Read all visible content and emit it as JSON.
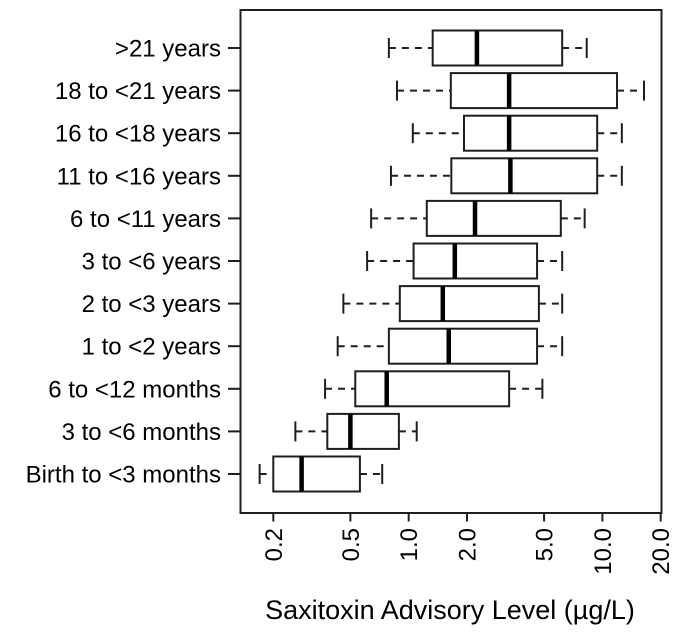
{
  "figure": {
    "background": "#ffffff",
    "line_color": "#1f1f1f",
    "median_color": "#000000",
    "text_color": "#000000"
  },
  "chart_data": {
    "type": "boxplot",
    "orientation": "horizontal",
    "title": "",
    "xlabel": "Saxitoxin Advisory Level (µg/L)",
    "ylabel": "",
    "x_scale": "log10",
    "xlim": [
      0.13,
      20
    ],
    "grid": false,
    "legend": "none",
    "x_tick_values": [
      0.2,
      0.5,
      1.0,
      2.0,
      5.0,
      10.0,
      20.0
    ],
    "x_tick_labels": [
      "0.2",
      "0.5",
      "1.0",
      "2.0",
      "5.0",
      "10.0",
      "20.0"
    ],
    "categories": [
      ">21 years",
      "18 to <21 years",
      "16 to <18 years",
      "11 to <16 years",
      "6 to <11 years",
      "3 to <6 years",
      "2 to <3 years",
      "1 to <2 years",
      "6 to <12 months",
      "3 to <6 months",
      "Birth to <3 months"
    ],
    "boxes": [
      {
        "category": ">21 years",
        "whisker_low": 0.79,
        "q1": 1.33,
        "median": 2.25,
        "q3": 6.2,
        "whisker_high": 8.3
      },
      {
        "category": "18 to <21 years",
        "whisker_low": 0.87,
        "q1": 1.65,
        "median": 3.3,
        "q3": 11.9,
        "whisker_high": 16.4
      },
      {
        "category": "16 to <18 years",
        "whisker_low": 1.05,
        "q1": 1.93,
        "median": 3.3,
        "q3": 9.4,
        "whisker_high": 12.6
      },
      {
        "category": "11 to <16 years",
        "whisker_low": 0.81,
        "q1": 1.66,
        "median": 3.35,
        "q3": 9.4,
        "whisker_high": 12.6
      },
      {
        "category": "6 to <11 years",
        "whisker_low": 0.64,
        "q1": 1.24,
        "median": 2.2,
        "q3": 6.1,
        "whisker_high": 8.1
      },
      {
        "category": "3 to <6 years",
        "whisker_low": 0.61,
        "q1": 1.06,
        "median": 1.73,
        "q3": 4.6,
        "whisker_high": 6.2
      },
      {
        "category": "2 to <3 years",
        "whisker_low": 0.46,
        "q1": 0.9,
        "median": 1.5,
        "q3": 4.7,
        "whisker_high": 6.2
      },
      {
        "category": "1 to <2 years",
        "whisker_low": 0.43,
        "q1": 0.79,
        "median": 1.61,
        "q3": 4.6,
        "whisker_high": 6.2
      },
      {
        "category": "6 to <12 months",
        "whisker_low": 0.37,
        "q1": 0.53,
        "median": 0.77,
        "q3": 3.3,
        "whisker_high": 4.9
      },
      {
        "category": "3 to <6 months",
        "whisker_low": 0.26,
        "q1": 0.38,
        "median": 0.5,
        "q3": 0.89,
        "whisker_high": 1.1
      },
      {
        "category": "Birth to <3 months",
        "whisker_low": 0.17,
        "q1": 0.2,
        "median": 0.28,
        "q3": 0.56,
        "whisker_high": 0.73
      }
    ]
  }
}
